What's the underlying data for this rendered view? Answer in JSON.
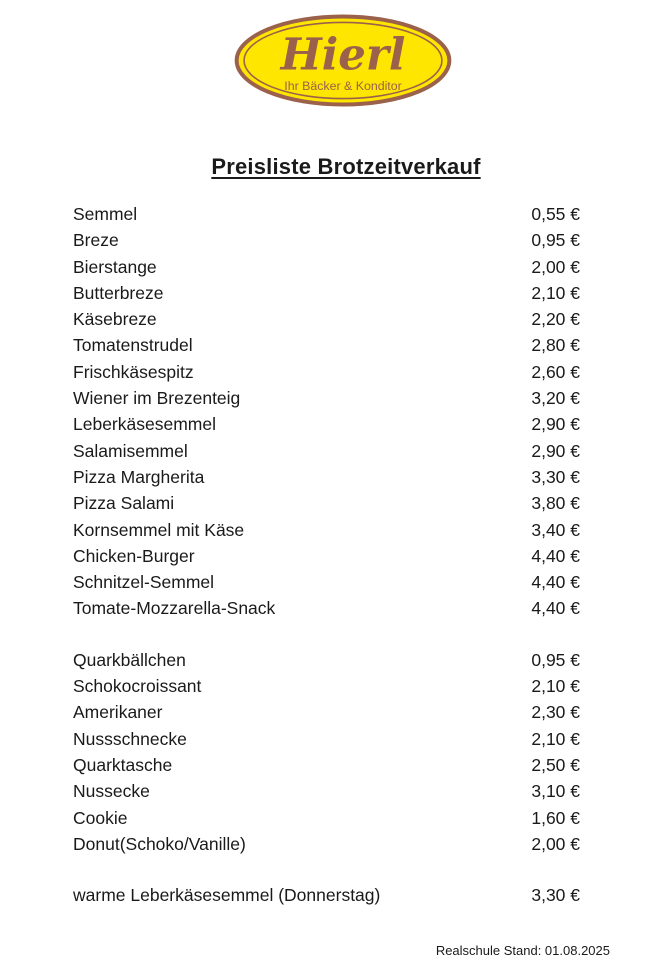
{
  "logo": {
    "brand": "Hierl",
    "tagline": "Ihr Bäcker & Konditor",
    "colors": {
      "oval_fill": "#ffe600",
      "oval_stroke": "#9b614b",
      "text": "#9b614b"
    }
  },
  "title": "Preisliste Brotzeitverkauf",
  "sections": [
    {
      "items": [
        {
          "name": "Semmel",
          "price": "0,55 €"
        },
        {
          "name": "Breze",
          "price": "0,95 €"
        },
        {
          "name": "Bierstange",
          "price": "2,00 €"
        },
        {
          "name": "Butterbreze",
          "price": "2,10 €"
        },
        {
          "name": "Käsebreze",
          "price": "2,20 €"
        },
        {
          "name": "Tomatenstrudel",
          "price": "2,80 €"
        },
        {
          "name": "Frischkäsespitz",
          "price": "2,60 €"
        },
        {
          "name": "Wiener im Brezenteig",
          "price": "3,20 €"
        },
        {
          "name": "Leberkäsesemmel",
          "price": "2,90 €"
        },
        {
          "name": "Salamisemmel",
          "price": "2,90 €"
        },
        {
          "name": "Pizza Margherita",
          "price": "3,30 €"
        },
        {
          "name": "Pizza Salami",
          "price": "3,80 €"
        },
        {
          "name": "Kornsemmel mit Käse",
          "price": "3,40 €"
        },
        {
          "name": "Chicken-Burger",
          "price": "4,40 €"
        },
        {
          "name": "Schnitzel-Semmel",
          "price": "4,40 €"
        },
        {
          "name": "Tomate-Mozzarella-Snack",
          "price": "4,40 €"
        }
      ]
    },
    {
      "items": [
        {
          "name": "Quarkbällchen",
          "price": "0,95 €"
        },
        {
          "name": "Schokocroissant",
          "price": "2,10 €"
        },
        {
          "name": "Amerikaner",
          "price": "2,30 €"
        },
        {
          "name": "Nussschnecke",
          "price": "2,10 €"
        },
        {
          "name": "Quarktasche",
          "price": "2,50 €"
        },
        {
          "name": "Nussecke",
          "price": "3,10 €"
        },
        {
          "name": "Cookie",
          "price": "1,60 €"
        },
        {
          "name": "Donut(Schoko/Vanille)",
          "price": "2,00 €"
        }
      ]
    },
    {
      "items": [
        {
          "name": "warme Leberkäsesemmel (Donnerstag)",
          "price": "3,30 €"
        }
      ]
    }
  ],
  "footer": "Realschule Stand: 01.08.2025"
}
